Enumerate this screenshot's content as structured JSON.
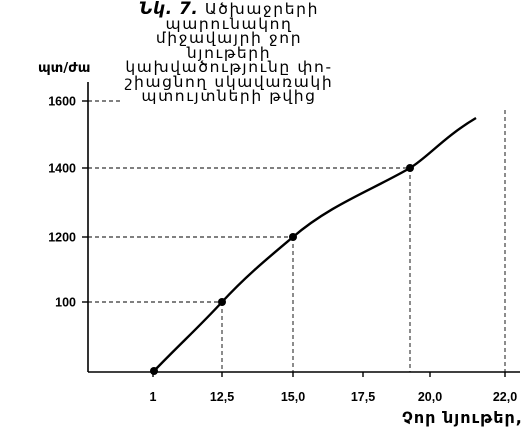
{
  "caption": {
    "figure_label": "Նկ. 7.",
    "lines": [
      "Ածխաջրերի պարունակող",
      "միջավայրի ջոր նյութերի",
      "կախվածությունը փո-",
      "շիացնող սկավառակի",
      "պտույտների թվից"
    ]
  },
  "chart_data": {
    "type": "line",
    "ylabel": "պտ/ժա",
    "xlabel": "Չոր նյութեր,",
    "x_ticks": [
      "1",
      "12,5",
      "15,0",
      "17,5",
      "20,0",
      "22,0"
    ],
    "y_ticks": [
      "100",
      "1200",
      "1400",
      "1600"
    ],
    "series": [
      {
        "x": [
          "1",
          "12,5",
          "15,0",
          "19,2"
        ],
        "y": [
          "0",
          "100",
          "1200",
          "1400"
        ],
        "curve_extends_to": "above 1400",
        "marker": "filled-circle"
      }
    ],
    "grid": "dashed guide lines from marked points to both axes",
    "colors": {
      "line": "#000000",
      "background": "#ffffff"
    }
  }
}
